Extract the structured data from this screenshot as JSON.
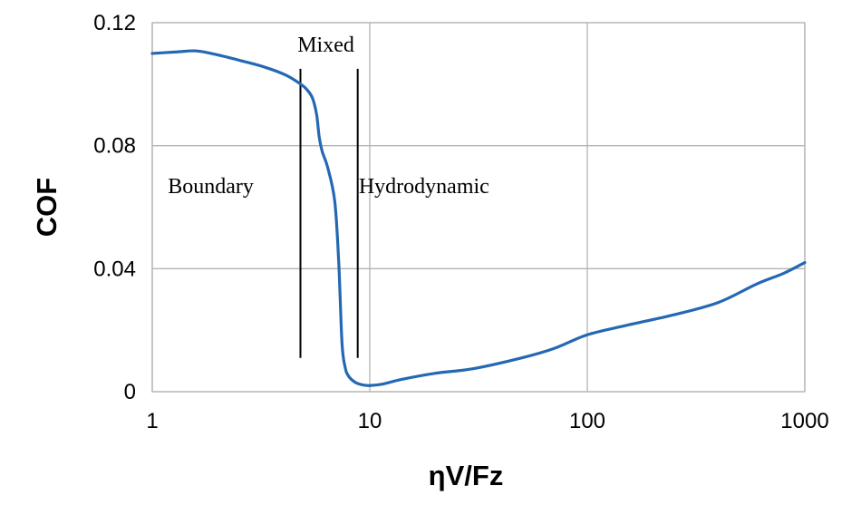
{
  "chart_data": {
    "type": "line",
    "x_scale": "log",
    "xlabel": "ηV/Fz",
    "ylabel": "COF",
    "xlim": [
      1,
      1000
    ],
    "ylim": [
      0,
      0.12
    ],
    "x_ticks": [
      1,
      10,
      100,
      1000
    ],
    "x_tick_labels": [
      "1",
      "10",
      "100",
      "1000"
    ],
    "y_ticks": [
      0,
      0.04,
      0.08,
      0.12
    ],
    "y_tick_labels": [
      "0",
      "0.04",
      "0.08",
      "0.12"
    ],
    "grid": true,
    "series": [
      {
        "color": "#2468b3",
        "x": [
          1,
          1.3,
          1.6,
          2.0,
          2.6,
          3.3,
          4.1,
          4.7,
          5.1,
          5.45,
          5.7,
          5.85,
          6.05,
          6.4,
          6.9,
          7.2,
          7.45,
          7.7,
          8.0,
          8.6,
          9.3,
          10,
          11.5,
          14,
          20,
          30,
          50,
          70,
          100,
          150,
          250,
          400,
          600,
          800,
          1000
        ],
        "y": [
          0.11,
          0.1105,
          0.1108,
          0.1095,
          0.1075,
          0.1055,
          0.103,
          0.1005,
          0.0985,
          0.0955,
          0.09,
          0.083,
          0.078,
          0.073,
          0.062,
          0.042,
          0.016,
          0.008,
          0.005,
          0.003,
          0.0022,
          0.002,
          0.0025,
          0.004,
          0.006,
          0.0075,
          0.011,
          0.014,
          0.0185,
          0.0215,
          0.025,
          0.029,
          0.035,
          0.0385,
          0.042
        ]
      }
    ],
    "vertical_lines": [
      4.8,
      8.8
    ],
    "vertical_line_range": [
      0.011,
      0.105
    ],
    "annotations": [
      {
        "text": "Boundary",
        "x": 1.18,
        "y": 0.0645
      },
      {
        "text": "Mixed",
        "x": 4.65,
        "y": 0.1105
      },
      {
        "text": "Hydrodynamic",
        "x": 8.9,
        "y": 0.0645
      }
    ]
  }
}
